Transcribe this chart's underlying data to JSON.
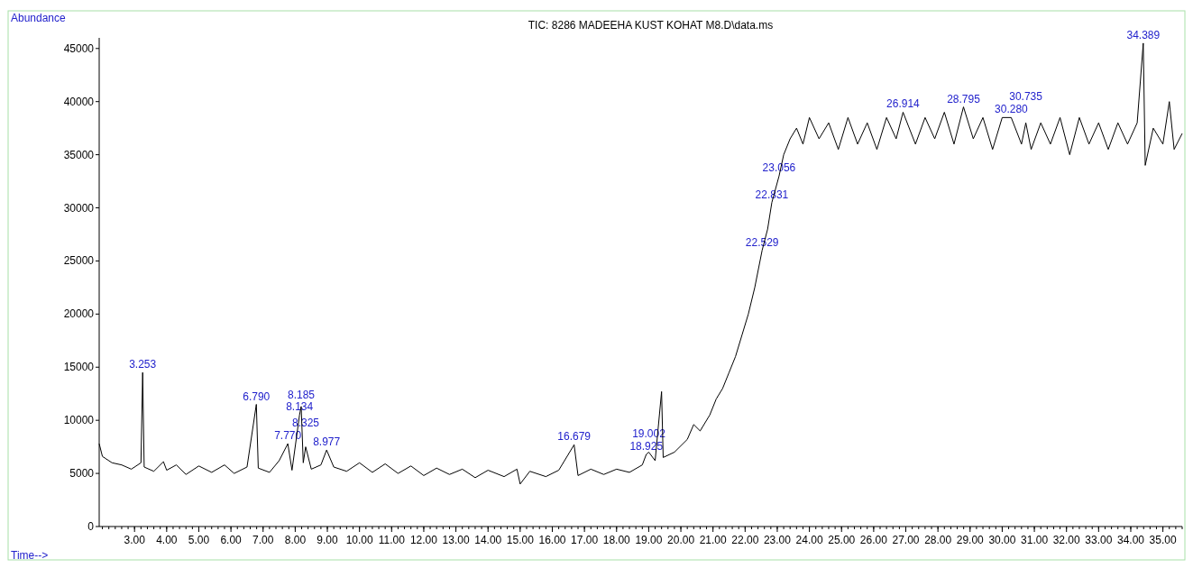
{
  "chart_data": {
    "type": "line",
    "title": "TIC: 8286 MADEEHA KUST KOHAT M8.D\\data.ms",
    "xlabel": "Time-->",
    "ylabel": "Abundance",
    "x": [
      1.9,
      2.0,
      2.3,
      2.6,
      2.9,
      3.2,
      3.253,
      3.3,
      3.6,
      3.9,
      4.0,
      4.3,
      4.6,
      5.0,
      5.4,
      5.8,
      6.1,
      6.5,
      6.79,
      6.85,
      7.2,
      7.5,
      7.77,
      7.9,
      8.134,
      8.185,
      8.25,
      8.325,
      8.5,
      8.8,
      8.977,
      9.2,
      9.6,
      10.0,
      10.4,
      10.8,
      11.2,
      11.6,
      12.0,
      12.4,
      12.8,
      13.2,
      13.6,
      14.0,
      14.5,
      14.9,
      15.0,
      15.3,
      15.8,
      16.2,
      16.679,
      16.8,
      17.2,
      17.6,
      18.0,
      18.4,
      18.8,
      18.925,
      19.002,
      19.2,
      19.4,
      19.45,
      19.8,
      20.2,
      20.4,
      20.6,
      20.9,
      21.1,
      21.3,
      21.5,
      21.7,
      21.9,
      22.1,
      22.3,
      22.529,
      22.7,
      22.831,
      23.056,
      23.2,
      23.4,
      23.6,
      23.8,
      24.0,
      24.3,
      24.6,
      24.9,
      25.2,
      25.5,
      25.8,
      26.1,
      26.4,
      26.7,
      26.914,
      27.3,
      27.6,
      27.9,
      28.2,
      28.5,
      28.795,
      29.1,
      29.4,
      29.7,
      30.0,
      30.28,
      30.6,
      30.735,
      30.9,
      31.2,
      31.5,
      31.8,
      32.1,
      32.4,
      32.7,
      33.0,
      33.3,
      33.6,
      33.9,
      34.2,
      34.389,
      34.45,
      34.7,
      35.0,
      35.2,
      35.35,
      35.6
    ],
    "series": [
      {
        "color": "#000000",
        "values": [
          7800,
          6600,
          6000,
          5800,
          5400,
          6000,
          14500,
          5600,
          5200,
          6100,
          5300,
          5800,
          4900,
          5700,
          5100,
          5800,
          5000,
          5600,
          11500,
          5500,
          5100,
          6200,
          7800,
          5300,
          10500,
          11300,
          6000,
          7500,
          5400,
          5800,
          7200,
          5600,
          5200,
          6000,
          5100,
          5900,
          5000,
          5700,
          4800,
          5500,
          4900,
          5400,
          4600,
          5300,
          4700,
          5400,
          4000,
          5200,
          4700,
          5300,
          7700,
          4800,
          5400,
          4900,
          5400,
          5100,
          5800,
          6800,
          7000,
          6200,
          12700,
          6500,
          7000,
          8200,
          9600,
          9000,
          10500,
          12000,
          13000,
          14500,
          16000,
          18000,
          20000,
          22500,
          26000,
          28000,
          30500,
          33000,
          35000,
          36500,
          37500,
          36000,
          38500,
          36500,
          38000,
          35500,
          38500,
          36000,
          38000,
          35500,
          38500,
          36500,
          39000,
          36000,
          38500,
          36500,
          39000,
          36000,
          39500,
          36500,
          38500,
          35500,
          38500,
          38500,
          36000,
          38000,
          35500,
          38000,
          36000,
          38500,
          35000,
          38500,
          36000,
          38000,
          35500,
          38000,
          36000,
          38000,
          45500,
          34000,
          37500,
          36000,
          40000,
          35500,
          37000
        ]
      }
    ],
    "xlim": [
      1.9,
      35.6
    ],
    "xticks": [
      {
        "value": 3,
        "label": "3.00"
      },
      {
        "value": 4,
        "label": "4.00"
      },
      {
        "value": 5,
        "label": "5.00"
      },
      {
        "value": 6,
        "label": "6.00"
      },
      {
        "value": 7,
        "label": "7.00"
      },
      {
        "value": 8,
        "label": "8.00"
      },
      {
        "value": 9,
        "label": "9.00"
      },
      {
        "value": 10,
        "label": "10.00"
      },
      {
        "value": 11,
        "label": "11.00"
      },
      {
        "value": 12,
        "label": "12.00"
      },
      {
        "value": 13,
        "label": "13.00"
      },
      {
        "value": 14,
        "label": "14.00"
      },
      {
        "value": 15,
        "label": "15.00"
      },
      {
        "value": 16,
        "label": "16.00"
      },
      {
        "value": 17,
        "label": "17.00"
      },
      {
        "value": 18,
        "label": "18.00"
      },
      {
        "value": 19,
        "label": "19.00"
      },
      {
        "value": 20,
        "label": "20.00"
      },
      {
        "value": 21,
        "label": "21.00"
      },
      {
        "value": 22,
        "label": "22.00"
      },
      {
        "value": 23,
        "label": "23.00"
      },
      {
        "value": 24,
        "label": "24.00"
      },
      {
        "value": 25,
        "label": "25.00"
      },
      {
        "value": 26,
        "label": "26.00"
      },
      {
        "value": 27,
        "label": "27.00"
      },
      {
        "value": 28,
        "label": "28.00"
      },
      {
        "value": 29,
        "label": "29.00"
      },
      {
        "value": 30,
        "label": "30.00"
      },
      {
        "value": 31,
        "label": "31.00"
      },
      {
        "value": 32,
        "label": "32.00"
      },
      {
        "value": 33,
        "label": "33.00"
      },
      {
        "value": 34,
        "label": "34.00"
      },
      {
        "value": 35,
        "label": "35.00"
      }
    ],
    "ylim": [
      0,
      46000
    ],
    "yticks": [
      0,
      5000,
      10000,
      15000,
      20000,
      25000,
      30000,
      35000,
      40000,
      45000
    ],
    "annotations": [
      {
        "text": "3.253",
        "x": 3.253,
        "y": 14500
      },
      {
        "text": "6.790",
        "x": 6.79,
        "y": 11500
      },
      {
        "text": "7.770",
        "x": 7.77,
        "y": 7800
      },
      {
        "text": "8.134",
        "x": 8.134,
        "y": 10500
      },
      {
        "text": "8.185",
        "x": 8.185,
        "y": 11300
      },
      {
        "text": "8.325",
        "x": 8.325,
        "y": 7500
      },
      {
        "text": "8.977",
        "x": 8.977,
        "y": 7200
      },
      {
        "text": "16.679",
        "x": 16.679,
        "y": 7700
      },
      {
        "text": "18.925",
        "x": 18.925,
        "y": 6800
      },
      {
        "text": "19.002",
        "x": 19.002,
        "y": 7000
      },
      {
        "text": "22.529",
        "x": 22.529,
        "y": 26000
      },
      {
        "text": "22.831",
        "x": 22.831,
        "y": 30500
      },
      {
        "text": "23.056",
        "x": 23.056,
        "y": 33000
      },
      {
        "text": "26.914",
        "x": 26.914,
        "y": 39000
      },
      {
        "text": "28.795",
        "x": 28.795,
        "y": 39500
      },
      {
        "text": "30.280",
        "x": 30.28,
        "y": 38500
      },
      {
        "text": "30.735",
        "x": 30.735,
        "y": 38000
      },
      {
        "text": "34.389",
        "x": 34.389,
        "y": 45500
      }
    ],
    "grid": false,
    "marker": "none",
    "line_style": "solid"
  }
}
